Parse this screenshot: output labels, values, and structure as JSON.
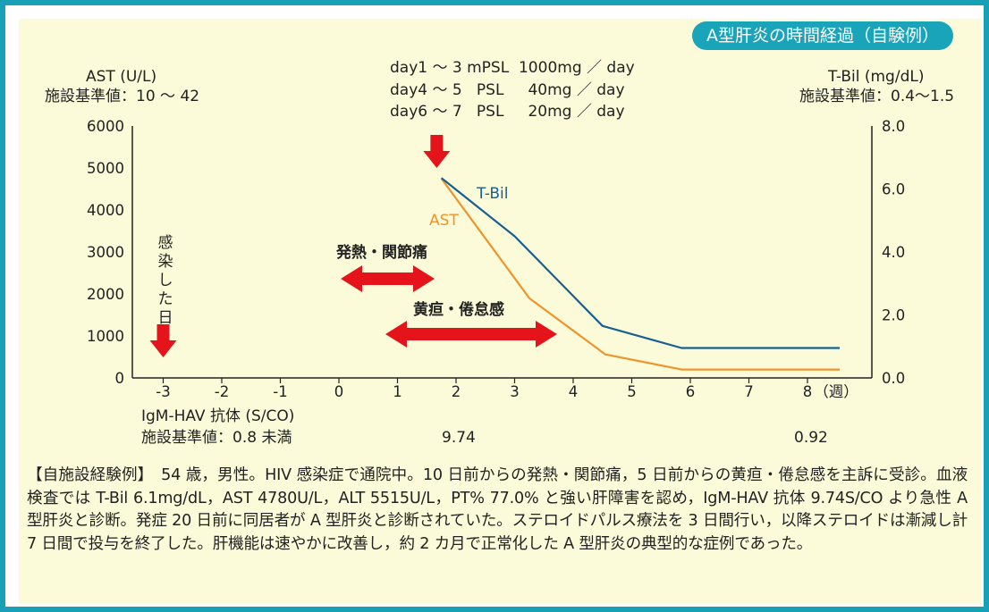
{
  "badge": "A型肝炎の時間経過（自験例）",
  "left_axis": {
    "title": "AST (U/L)",
    "reference": "施設基準値：10 ～ 42"
  },
  "right_axis": {
    "title": "T-Bil (mg/dL)",
    "reference": "施設基準値：0.4～1.5"
  },
  "regimen": [
    "day1 ～ 3 mPSL  1000mg ／ day",
    "day4 ～ 5   PSL     40mg ／ day",
    "day6 ～ 7   PSL     20mg ／ day"
  ],
  "infection_label": [
    "感",
    "染",
    "し",
    "た",
    "日"
  ],
  "symptom_fever": "発熱・関節痛",
  "symptom_jaundice": "黄疸・倦怠感",
  "igm": {
    "label": "IgM-HAV 抗体 (S/CO)",
    "reference": "施設基準値：0.8 未満",
    "values": [
      {
        "week": 2,
        "value": "9.74"
      },
      {
        "week": 8,
        "value": "0.92"
      }
    ]
  },
  "case_text": "【自施設経験例】　54 歳，男性。HIV 感染症で通院中。10 日前からの発熱・関節痛，5 日前からの黄疸・倦怠感を主訴に受診。血液検査では T-Bil 6.1mg/dL，AST 4780U/L，ALT 5515U/L，PT% 77.0% と強い肝障害を認め，IgM-HAV 抗体 9.74S/CO より急性 A 型肝炎と診断。発症 20 日前に同居者が A 型肝炎と診断されていた。ステロイドパルス療法を 3 日間行い，以降ステロイドは漸減し計 7 日間で投与を終了した。肝機能は速やかに改善し，約 2 カ月で正常化した A 型肝炎の典型的な症例であった。",
  "chart_data": {
    "type": "line",
    "x_unit": "（週）",
    "x_ticks": [
      -3,
      -2,
      -1,
      0,
      1,
      2,
      3,
      4,
      5,
      6,
      7,
      8
    ],
    "xlim": [
      -3.5,
      8.5
    ],
    "ylim_left": [
      0,
      6000
    ],
    "yticks_left": [
      "6000",
      "5000",
      "4000",
      "3000",
      "2000",
      "1000",
      "0"
    ],
    "ylim_right": [
      0,
      8.0
    ],
    "yticks_right": [
      "8.0",
      "6.0",
      "4.0",
      "2.0",
      "0.0"
    ],
    "series": [
      {
        "name": "AST",
        "axis": "left",
        "color": "#f0932b",
        "points": [
          [
            1.75,
            4750
          ],
          [
            3.25,
            1900
          ],
          [
            4.55,
            560
          ],
          [
            5.85,
            200
          ],
          [
            8.55,
            200
          ]
        ]
      },
      {
        "name": "T-Bil",
        "axis": "right",
        "color": "#1a5f91",
        "points": [
          [
            1.75,
            6.35
          ],
          [
            3.0,
            4.5
          ],
          [
            4.5,
            1.65
          ],
          [
            5.85,
            0.95
          ],
          [
            8.55,
            0.95
          ]
        ]
      }
    ],
    "arrows": [
      {
        "kind": "down",
        "at_week": -3
      },
      {
        "kind": "down",
        "at_week": 1.7
      },
      {
        "kind": "double",
        "from_week": 0,
        "to_week": 1.6,
        "label": "symptom_fever"
      },
      {
        "kind": "double",
        "from_week": 0.75,
        "to_week": 3.65,
        "label": "symptom_jaundice"
      }
    ],
    "arrow_color": "#e5141b"
  }
}
